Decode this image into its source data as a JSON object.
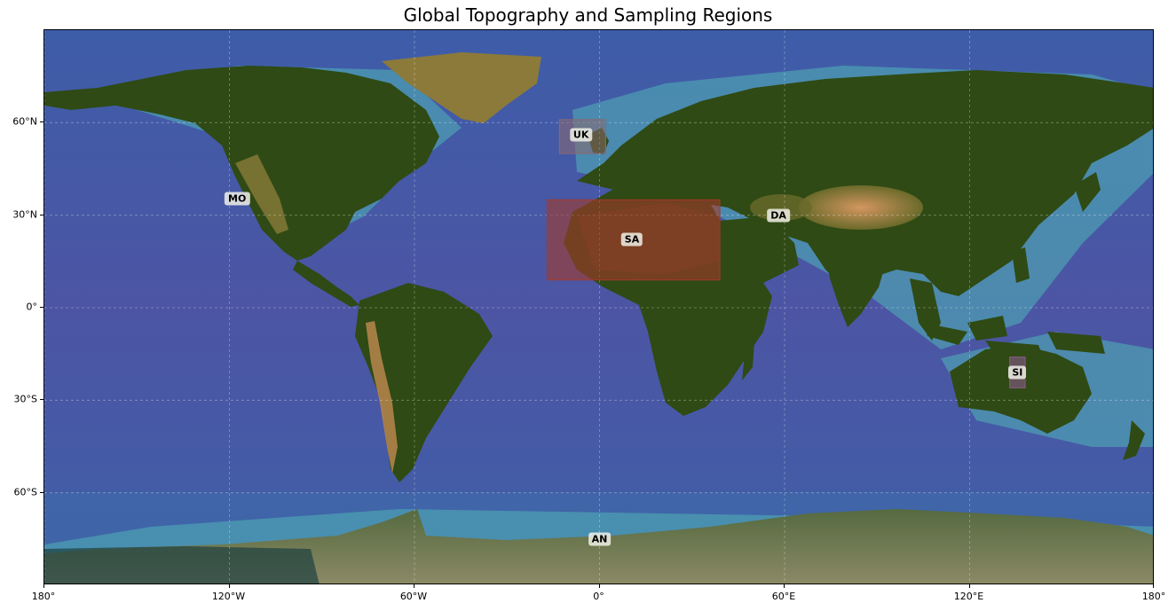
{
  "title": "Global Topography and Sampling Regions",
  "map": {
    "projection": "PlateCarree",
    "extent": {
      "lon": [
        -180,
        180
      ],
      "lat": [
        -90,
        90
      ]
    },
    "gridlines": true,
    "ocean_color": "#4a5aa8",
    "shelf_color": "#4fa6b4",
    "land_color": "#2f4a14",
    "highland_color": "#c88a4e",
    "ice_color": "#8c8a66"
  },
  "axes": {
    "x_ticks": [
      {
        "value": -180,
        "label": "180°"
      },
      {
        "value": -120,
        "label": "120°W"
      },
      {
        "value": -60,
        "label": "60°W"
      },
      {
        "value": 0,
        "label": "0°"
      },
      {
        "value": 60,
        "label": "60°E"
      },
      {
        "value": 120,
        "label": "120°E"
      },
      {
        "value": 180,
        "label": "180°"
      }
    ],
    "y_ticks": [
      {
        "value": 60,
        "label": "60°N"
      },
      {
        "value": 30,
        "label": "30°N"
      },
      {
        "value": 0,
        "label": "0°"
      },
      {
        "value": -30,
        "label": "30°S"
      },
      {
        "value": -60,
        "label": "60°S"
      }
    ]
  },
  "regions": [
    {
      "code": "UK",
      "lon": [
        -13,
        2
      ],
      "lat": [
        50,
        61
      ],
      "label_at": [
        -6,
        56
      ],
      "fill": "#8a6a70",
      "opacity": 0.55
    },
    {
      "code": "MO",
      "lon": null,
      "lat": null,
      "label_at": [
        -117.5,
        35.5
      ],
      "fill": null,
      "opacity": 0
    },
    {
      "code": "SA",
      "lon": [
        -17,
        39
      ],
      "lat": [
        9,
        35
      ],
      "label_at": [
        10.5,
        22
      ],
      "fill": "#a33a2a",
      "opacity": 0.6
    },
    {
      "code": "DA",
      "lon": null,
      "lat": null,
      "label_at": [
        58,
        30
      ],
      "fill": null,
      "opacity": 0
    },
    {
      "code": "SI",
      "lon": [
        133,
        138
      ],
      "lat": [
        -26,
        -16
      ],
      "label_at": [
        135.5,
        -21
      ],
      "fill": "#8a5a8a",
      "opacity": 0.6
    },
    {
      "code": "AN",
      "lon": null,
      "lat": null,
      "label_at": [
        0,
        -75
      ],
      "fill": null,
      "opacity": 0
    }
  ]
}
